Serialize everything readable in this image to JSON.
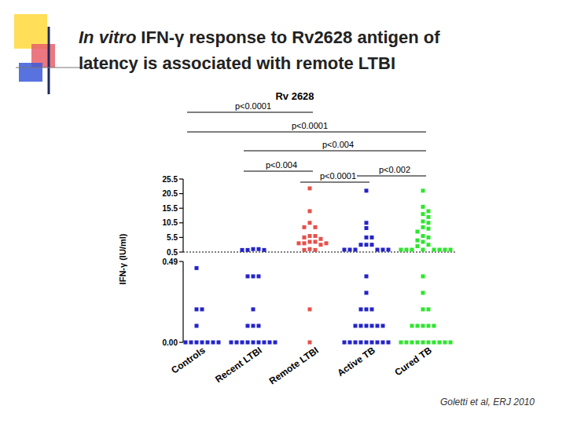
{
  "slide": {
    "title": {
      "emphasis": "In vitro",
      "lines": [
        "IFN-γ response to Rv2628 antigen of",
        "latency is associated with remote LTBI"
      ]
    },
    "citation": "Goletti et al, ERJ 2010"
  },
  "chart_data": {
    "type": "scatter",
    "title": "Rv 2628",
    "y_label": "IFN-γ (IU/ml)",
    "categories": [
      "Controls",
      "Recent LTBI",
      "Remote LTBI",
      "Active TB",
      "Cured TB"
    ],
    "colors": [
      "#2424c8",
      "#2424c8",
      "#e8504a",
      "#2424c8",
      "#2ee62e"
    ],
    "marker": "square",
    "values": [
      [
        0.45,
        0.2,
        0.2,
        0.1,
        0,
        0,
        0,
        0,
        0,
        0,
        0,
        0,
        0
      ],
      [
        1.5,
        1.5,
        1.2,
        1.2,
        1.2,
        0.4,
        0.4,
        0.4,
        0.2,
        0.1,
        0.1,
        0.1,
        0,
        0,
        0,
        0,
        0,
        0,
        0,
        0,
        0
      ],
      [
        22.3,
        14.5,
        10.5,
        9,
        9,
        6,
        6,
        5.5,
        5,
        4,
        4,
        3.5,
        3.5,
        3.5,
        3,
        1.5,
        1.2,
        1.2,
        0.2,
        0
      ],
      [
        21.5,
        10.5,
        8.7,
        5.5,
        5.5,
        3,
        3,
        3,
        1.3,
        1.3,
        1.3,
        1.3,
        1.3,
        1.3,
        0.4,
        0.3,
        0.2,
        0.2,
        0.2,
        0.1,
        0.1,
        0.1,
        0.1,
        0.1,
        0.1,
        0,
        0,
        0,
        0,
        0,
        0,
        0,
        0,
        0
      ],
      [
        21.5,
        16,
        14.5,
        13.5,
        12.5,
        11,
        10.5,
        9,
        8.5,
        7.5,
        6,
        5.5,
        4.5,
        4,
        3,
        2.5,
        1.3,
        1.3,
        1.3,
        1.3,
        1.3,
        1.3,
        1.3,
        1.3,
        0.4,
        0.3,
        0.2,
        0.2,
        0.1,
        0.1,
        0.1,
        0.1,
        0.1,
        0,
        0,
        0,
        0,
        0,
        0,
        0,
        0,
        0,
        0
      ]
    ],
    "y_segments": [
      {
        "ylim": [
          0,
          0.49
        ],
        "yticks": [
          {
            "value": 0,
            "label": "0.00"
          },
          0.49
        ]
      },
      {
        "ylim": [
          0.5,
          25.5
        ],
        "yticks": [
          0.5,
          5.5,
          10.5,
          15.5,
          20.5,
          25.5
        ]
      }
    ],
    "cutoff": 0.5,
    "comparisons": [
      {
        "label": "p<0.0001",
        "groups": [
          0,
          2
        ]
      },
      {
        "label": "p<0.0001",
        "groups": [
          0,
          4
        ]
      },
      {
        "label": "p<0.004",
        "groups": [
          1,
          4
        ]
      },
      {
        "label": "p<0.004",
        "groups": [
          1,
          2
        ]
      },
      {
        "label": "p<0.0001",
        "groups": [
          2,
          3
        ]
      },
      {
        "label": "p<0.002",
        "groups": [
          3,
          4
        ]
      }
    ]
  }
}
